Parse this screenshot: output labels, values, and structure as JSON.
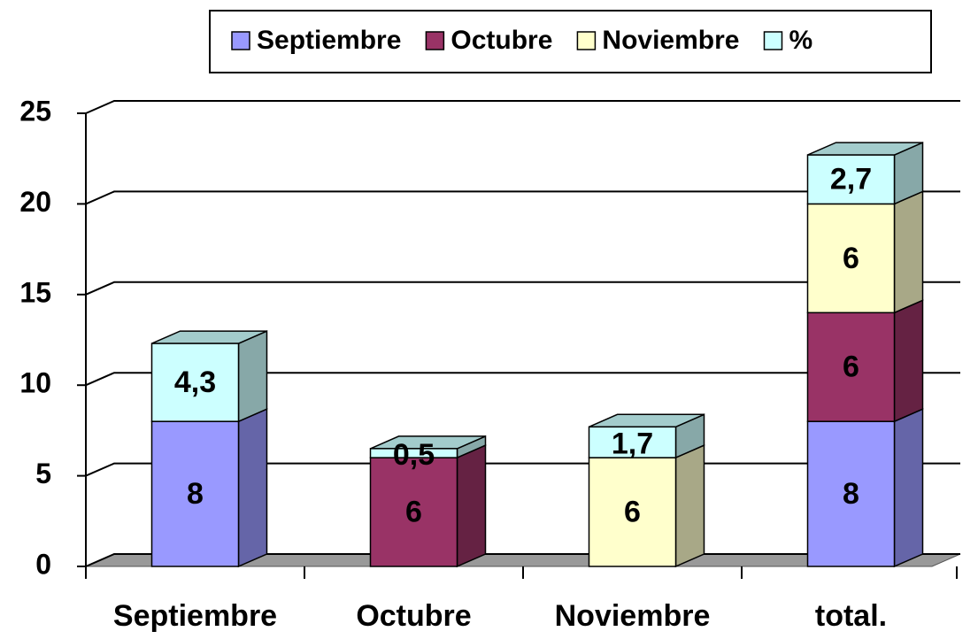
{
  "chart_data": {
    "type": "bar3d_stacked",
    "categories": [
      "Septiembre",
      "Octubre",
      "Noviembre",
      "total."
    ],
    "series": [
      {
        "name": "Septiembre",
        "color": "#9999ff",
        "values": [
          8,
          null,
          null,
          8
        ]
      },
      {
        "name": "Octubre",
        "color": "#993366",
        "values": [
          null,
          6,
          null,
          6
        ]
      },
      {
        "name": "Noviembre",
        "color": "#ffffcc",
        "values": [
          null,
          null,
          6,
          6
        ]
      },
      {
        "name": "%",
        "color": "#ccffff",
        "values": [
          4.3,
          0.5,
          1.7,
          2.7
        ],
        "value_labels": [
          "4,3",
          "0,5",
          "1,7",
          "2,7"
        ]
      }
    ],
    "ylim": [
      0,
      25
    ],
    "yticks": [
      0,
      5,
      10,
      15,
      20,
      25
    ],
    "grid": true,
    "legend": "top"
  }
}
